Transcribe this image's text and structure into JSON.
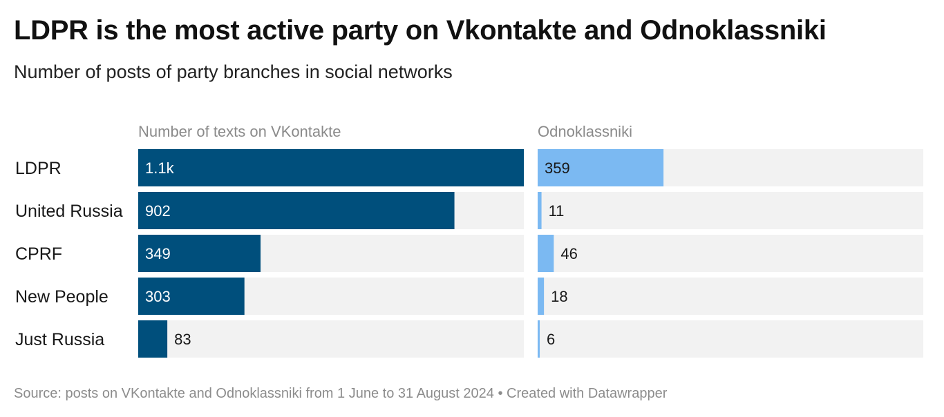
{
  "title": "LDPR is the most active party on Vkontakte and Odnoklassniki",
  "subtitle": "Number of posts of party branches in social networks",
  "footer": {
    "source": "Source: posts on VKontakte and Odnoklassniki from 1 June to 31 August 2024",
    "separator": "•",
    "credit": "Created with Datawrapper"
  },
  "colors": {
    "vk_bar": "#004f7c",
    "ok_bar": "#7bb9f2",
    "track": "#f2f2f2",
    "label_on_bar": "#ffffff",
    "label_off_bar": "#181818"
  },
  "chart_data": {
    "type": "bar",
    "orientation": "horizontal",
    "categories": [
      "LDPR",
      "United Russia",
      "CPRF",
      "New People",
      "Just Russia"
    ],
    "series": [
      {
        "name": "Number of texts on VKontakte",
        "values": [
          1100,
          902,
          349,
          303,
          83
        ],
        "labels": [
          "1.1k",
          "902",
          "349",
          "303",
          "83"
        ],
        "xlim": [
          0,
          1100
        ]
      },
      {
        "name": "Odnoklassniki",
        "values": [
          359,
          11,
          46,
          18,
          6
        ],
        "labels": [
          "359",
          "11",
          "46",
          "18",
          "6"
        ],
        "xlim": [
          0,
          1100
        ]
      }
    ],
    "grid": false,
    "legend": "none"
  }
}
